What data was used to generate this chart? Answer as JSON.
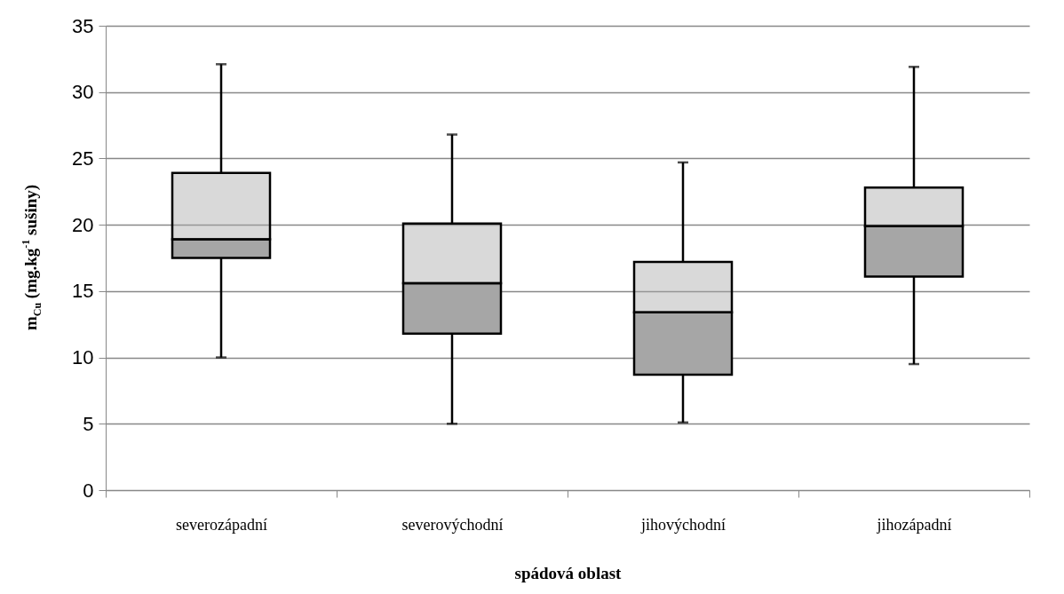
{
  "chart_data": {
    "type": "box",
    "xlabel": "spádová oblast",
    "ylabel": "m$_{Cu}$ (mg.kg$^{-1}$ sušiny)",
    "categories": [
      "severozápadní",
      "severovýchodní",
      "jihovýchodní",
      "jihozápadní"
    ],
    "boxes": [
      {
        "low": 10.0,
        "q1": 17.5,
        "median": 18.9,
        "q3": 23.9,
        "high": 32.1
      },
      {
        "low": 5.0,
        "q1": 11.8,
        "median": 15.6,
        "q3": 20.1,
        "high": 26.8
      },
      {
        "low": 5.1,
        "q1": 8.7,
        "median": 13.4,
        "q3": 17.2,
        "high": 24.7
      },
      {
        "low": 9.5,
        "q1": 16.1,
        "median": 19.9,
        "q3": 22.8,
        "high": 31.9
      }
    ],
    "colors": [
      "#a6a6a6",
      "#a6a6a6",
      "#a6a6a6",
      "#a6a6a6"
    ],
    "ylim": [
      0,
      35
    ],
    "yticks": [
      0,
      5,
      10,
      15,
      20,
      25,
      30,
      35
    ],
    "grid": "y"
  }
}
